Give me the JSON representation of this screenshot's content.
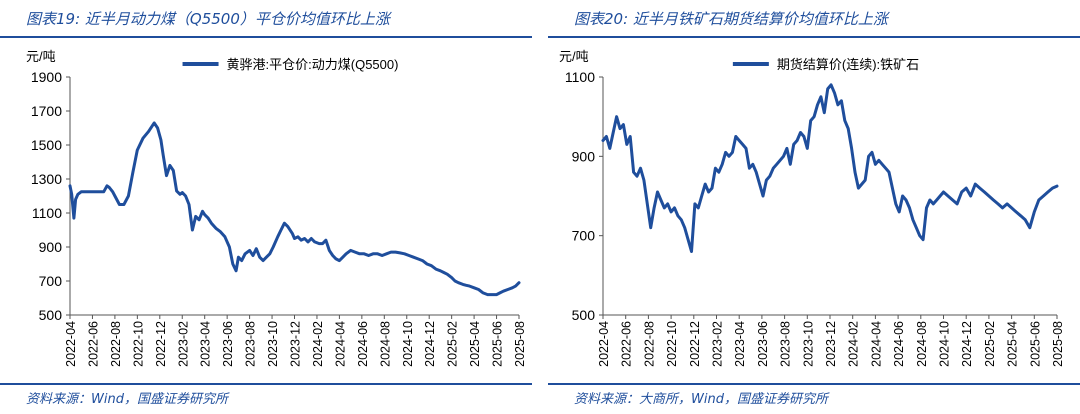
{
  "charts": [
    {
      "title": "图表19:  近半月动力煤（Q5500）平仓价均值环比上涨",
      "source": "资料来源：Wind，国盛证券研究所",
      "chart_data": {
        "type": "line",
        "ylabel": "元/吨",
        "ylim": [
          500,
          1900
        ],
        "yticks": [
          500,
          700,
          900,
          1100,
          1300,
          1500,
          1700,
          1900
        ],
        "xlim": [
          0,
          40
        ],
        "xtick_labels": [
          "2022-04",
          "2022-06",
          "2022-08",
          "2022-10",
          "2022-12",
          "2023-02",
          "2023-04",
          "2023-06",
          "2023-08",
          "2023-10",
          "2023-12",
          "2024-02",
          "2024-04",
          "2024-06",
          "2024-08",
          "2024-10",
          "2024-12",
          "2025-02",
          "2025-04",
          "2025-06",
          "2025-08"
        ],
        "legend_position": "top-center",
        "color": "#1f4e9c",
        "series": [
          {
            "name": "黄骅港:平仓价:动力煤(Q5500)",
            "x": [
              0,
              0.15,
              0.35,
              0.5,
              0.7,
              1,
              1.5,
              2,
              2.5,
              3,
              3.3,
              3.5,
              3.8,
              4,
              4.4,
              4.8,
              5.2,
              5.6,
              6,
              6.5,
              7,
              7.5,
              7.8,
              8.1,
              8.3,
              8.6,
              8.9,
              9.2,
              9.5,
              9.8,
              10,
              10.3,
              10.6,
              10.9,
              11.2,
              11.5,
              11.8,
              12,
              12.3,
              12.6,
              13,
              13.4,
              13.8,
              14.2,
              14.5,
              14.8,
              15,
              15.3,
              15.6,
              16,
              16.3,
              16.6,
              16.9,
              17.2,
              17.5,
              17.8,
              18.1,
              18.5,
              18.8,
              19.1,
              19.4,
              19.8,
              20,
              20.3,
              20.6,
              20.9,
              21.2,
              21.5,
              21.8,
              22.2,
              22.5,
              22.8,
              23.1,
              23.4,
              23.7,
              24,
              24.3,
              24.6,
              25,
              25.4,
              25.8,
              26.2,
              26.6,
              27,
              27.4,
              27.8,
              28.2,
              28.6,
              29,
              29.4,
              29.8,
              30.2,
              30.6,
              31,
              31.4,
              31.8,
              32.2,
              32.6,
              33,
              33.3,
              33.6,
              34,
              34.3,
              34.6,
              35,
              35.3,
              35.6,
              36,
              36.4,
              36.8,
              37.2,
              37.6,
              38,
              38.3,
              38.6,
              39,
              39.4,
              39.7,
              40
            ],
            "y": [
              1260,
              1210,
              1070,
              1180,
              1210,
              1225,
              1225,
              1225,
              1225,
              1225,
              1260,
              1250,
              1225,
              1200,
              1150,
              1150,
              1200,
              1340,
              1470,
              1540,
              1580,
              1630,
              1600,
              1530,
              1440,
              1320,
              1380,
              1350,
              1230,
              1210,
              1220,
              1200,
              1150,
              1000,
              1080,
              1060,
              1110,
              1090,
              1070,
              1040,
              1010,
              990,
              960,
              900,
              800,
              760,
              840,
              820,
              860,
              880,
              850,
              890,
              840,
              820,
              840,
              860,
              900,
              960,
              1000,
              1040,
              1020,
              980,
              950,
              960,
              940,
              950,
              930,
              950,
              930,
              920,
              920,
              940,
              880,
              850,
              830,
              820,
              840,
              860,
              880,
              870,
              860,
              860,
              850,
              860,
              860,
              850,
              860,
              870,
              870,
              865,
              860,
              850,
              840,
              830,
              820,
              800,
              790,
              770,
              760,
              750,
              740,
              720,
              700,
              690,
              680,
              675,
              670,
              660,
              650,
              630,
              620,
              620,
              620,
              630,
              640,
              650,
              660,
              670,
              690
            ]
          }
        ]
      }
    },
    {
      "title": "图表20:  近半月铁矿石期货结算价均值环比上涨",
      "source": "资料来源：大商所，Wind，国盛证券研究所",
      "chart_data": {
        "type": "line",
        "ylabel": "元/吨",
        "ylim": [
          500,
          1100
        ],
        "yticks": [
          500,
          700,
          900,
          1100
        ],
        "xlim": [
          0,
          40
        ],
        "xtick_labels": [
          "2022-04",
          "2022-06",
          "2022-08",
          "2022-10",
          "2022-12",
          "2023-02",
          "2023-04",
          "2023-06",
          "2023-08",
          "2023-10",
          "2023-12",
          "2024-02",
          "2024-04",
          "2024-06",
          "2024-08",
          "2024-10",
          "2024-12",
          "2025-02",
          "2025-04",
          "2025-06",
          "2025-08"
        ],
        "legend_position": "top-center",
        "color": "#1f4e9c",
        "series": [
          {
            "name": "期货结算价(连续):铁矿石",
            "x": [
              0,
              0.3,
              0.6,
              0.9,
              1.2,
              1.5,
              1.8,
              2.1,
              2.4,
              2.7,
              3,
              3.3,
              3.6,
              3.9,
              4.2,
              4.5,
              4.8,
              5.1,
              5.4,
              5.7,
              6,
              6.3,
              6.6,
              6.9,
              7.2,
              7.5,
              7.8,
              8.1,
              8.4,
              8.7,
              9,
              9.3,
              9.6,
              9.9,
              10.2,
              10.5,
              10.8,
              11.1,
              11.4,
              11.7,
              12,
              12.3,
              12.6,
              12.9,
              13.2,
              13.5,
              13.8,
              14.1,
              14.4,
              14.7,
              15,
              15.3,
              15.6,
              15.9,
              16.2,
              16.5,
              16.8,
              17.1,
              17.4,
              17.7,
              18,
              18.3,
              18.6,
              18.9,
              19.2,
              19.5,
              19.8,
              20.1,
              20.4,
              20.7,
              21,
              21.3,
              21.6,
              21.9,
              22.2,
              22.5,
              22.8,
              23.1,
              23.4,
              23.7,
              24,
              24.3,
              24.6,
              24.9,
              25.2,
              25.5,
              25.8,
              26.1,
              26.4,
              26.7,
              27,
              27.3,
              27.6,
              27.9,
              28.2,
              28.5,
              28.8,
              29.1,
              29.4,
              29.7,
              30,
              30.4,
              30.8,
              31.2,
              31.6,
              32,
              32.4,
              32.8,
              33.2,
              33.6,
              34,
              34.4,
              34.8,
              35.2,
              35.6,
              36,
              36.4,
              36.8,
              37.2,
              37.6,
              38,
              38.4,
              38.8,
              39.2,
              39.6,
              40
            ],
            "y": [
              940,
              950,
              920,
              960,
              1000,
              970,
              980,
              930,
              950,
              860,
              850,
              870,
              840,
              780,
              720,
              770,
              810,
              790,
              770,
              780,
              760,
              770,
              750,
              740,
              720,
              690,
              660,
              780,
              770,
              800,
              830,
              810,
              820,
              870,
              860,
              880,
              910,
              900,
              910,
              950,
              940,
              930,
              920,
              870,
              880,
              860,
              830,
              800,
              840,
              850,
              870,
              880,
              890,
              900,
              920,
              880,
              930,
              940,
              960,
              950,
              920,
              990,
              1000,
              1030,
              1050,
              1010,
              1070,
              1080,
              1060,
              1030,
              1040,
              990,
              970,
              920,
              860,
              820,
              830,
              840,
              900,
              910,
              880,
              890,
              880,
              870,
              860,
              820,
              780,
              760,
              800,
              790,
              770,
              740,
              720,
              700,
              690,
              770,
              790,
              780,
              790,
              800,
              810,
              800,
              790,
              780,
              810,
              820,
              800,
              830,
              820,
              810,
              800,
              790,
              780,
              770,
              780,
              770,
              760,
              750,
              740,
              720,
              760,
              790,
              800,
              810,
              820,
              825
            ]
          }
        ]
      }
    }
  ]
}
